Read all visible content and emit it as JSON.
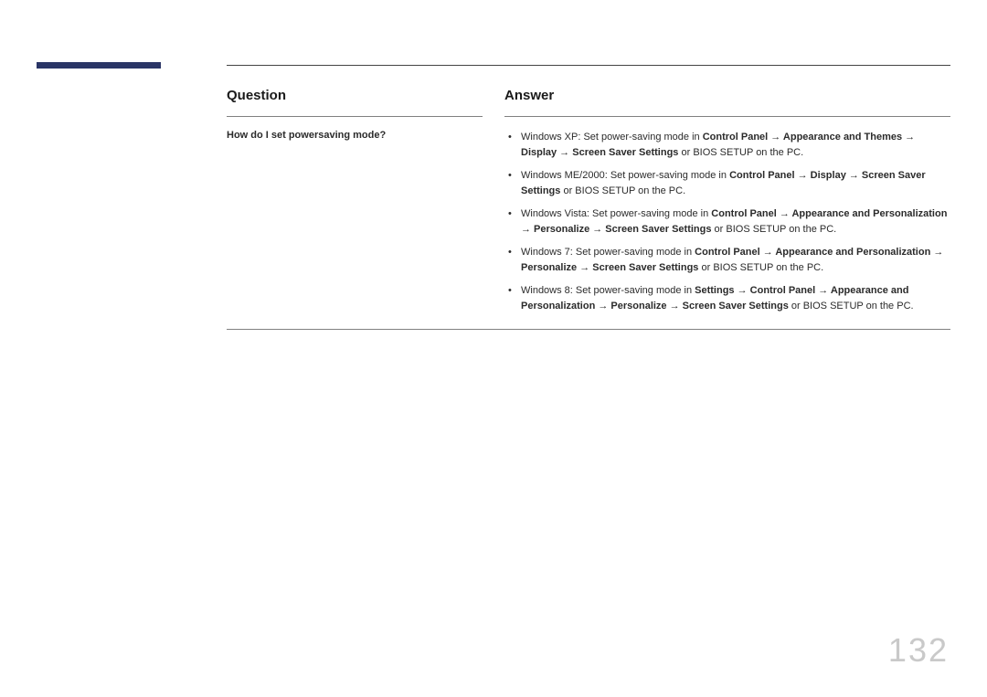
{
  "page_number": "132",
  "headers": {
    "question": "Question",
    "answer": "Answer"
  },
  "question": "How do I set powersaving mode?",
  "answers": [
    {
      "prefix": "Windows XP: Set power-saving mode in ",
      "bold1": "Control Panel → Appearance and Themes → Display → Screen Saver Settings",
      "suffix": " or BIOS SETUP on the PC."
    },
    {
      "prefix": "Windows ME/2000: Set power-saving mode in ",
      "bold1": "Control Panel → Display → Screen Saver Settings",
      "suffix": " or BIOS SETUP on the PC."
    },
    {
      "prefix": "Windows Vista: Set power-saving mode in ",
      "bold1": "Control Panel → Appearance and Personalization → Personalize → Screen Saver Settings",
      "suffix": " or BIOS SETUP on the PC."
    },
    {
      "prefix": "Windows 7: Set power-saving mode in ",
      "bold1": "Control Panel → Appearance and Personalization → Personalize → Screen Saver Settings",
      "suffix": " or BIOS SETUP on the PC."
    },
    {
      "prefix": "Windows 8: Set power-saving mode in ",
      "bold1": "Settings → Control Panel → Appearance and Personalization → Personalize → Screen Saver Settings",
      "suffix": " or BIOS SETUP on the PC."
    }
  ],
  "colors": {
    "accent": "#2a3566",
    "page_num": "#c9c9c9",
    "rule": "#808080",
    "text": "#2b2b2b",
    "bg": "#ffffff"
  }
}
